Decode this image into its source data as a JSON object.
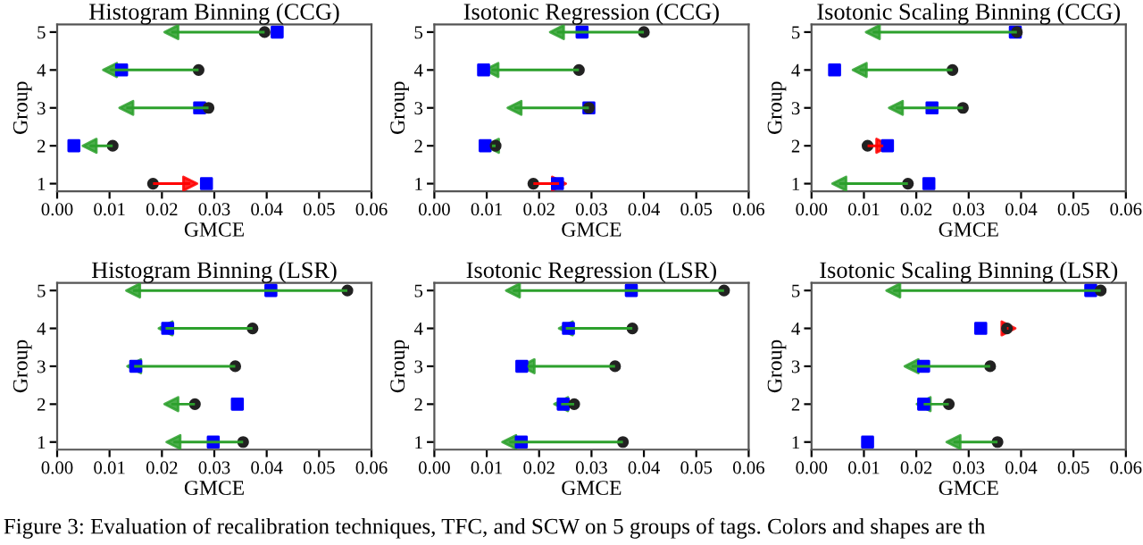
{
  "chart_data": [
    {
      "type": "bar",
      "orientation": "horizontal",
      "title": "Histogram Binning (CCG)",
      "grid": false,
      "legend": false,
      "xlabel": "GMCE",
      "ylabel": "Group",
      "categories": [
        "5",
        "4",
        "3",
        "2",
        "1"
      ],
      "xlim": [
        0,
        0.06
      ],
      "xticks": [
        {
          "value": 0,
          "label": "0.00"
        },
        {
          "value": 0.01,
          "label": "0.01"
        },
        {
          "value": 0.02,
          "label": "0.02"
        },
        {
          "value": 0.03,
          "label": "0.03"
        },
        {
          "value": 0.04,
          "label": "0.04"
        },
        {
          "value": 0.05,
          "label": "0.05"
        },
        {
          "value": 0.06,
          "label": "0.06"
        }
      ],
      "series": [
        {
          "type": "scatter",
          "marker": "circle",
          "color": "#222222",
          "values": [
            0.0396,
            0.027,
            0.0289,
            0.0106,
            0.0183
          ]
        },
        {
          "type": "bar",
          "base": [
            0.0396,
            0.027,
            0.0289,
            0.0106,
            0.0183
          ],
          "values": [
            -0.0178,
            -0.0169,
            -0.0157,
            -0.0044,
            0.0071
          ],
          "colors": [
            "#2ca02c",
            "#2ca02c",
            "#2ca02c",
            "#2ca02c",
            "#ff0000"
          ]
        },
        {
          "type": "scatter",
          "marker": "square",
          "color": "#0000ff",
          "values": [
            0.042,
            0.0123,
            0.0272,
            0.0032,
            0.0285
          ]
        }
      ]
    },
    {
      "type": "bar",
      "orientation": "horizontal",
      "title": "Isotonic Regression (CCG)",
      "grid": false,
      "legend": false,
      "xlabel": "GMCE",
      "ylabel": "Group",
      "categories": [
        "5",
        "4",
        "3",
        "2",
        "1"
      ],
      "xlim": [
        0,
        0.06
      ],
      "xticks": [
        {
          "value": 0,
          "label": "0.00"
        },
        {
          "value": 0.01,
          "label": "0.01"
        },
        {
          "value": 0.02,
          "label": "0.02"
        },
        {
          "value": 0.03,
          "label": "0.03"
        },
        {
          "value": 0.04,
          "label": "0.04"
        },
        {
          "value": 0.05,
          "label": "0.05"
        },
        {
          "value": 0.06,
          "label": "0.06"
        }
      ],
      "series": [
        {
          "type": "scatter",
          "marker": "circle",
          "color": "#222222",
          "values": [
            0.04,
            0.0276,
            0.0295,
            0.0117,
            0.0189
          ]
        },
        {
          "type": "bar",
          "base": [
            0.04,
            0.0276,
            0.0295,
            0.0117,
            0.0189
          ],
          "values": [
            -0.0166,
            -0.0167,
            -0.0142,
            -0.0007,
            0.0049
          ],
          "colors": [
            "#2ca02c",
            "#2ca02c",
            "#2ca02c",
            "#2ca02c",
            "#ff0000"
          ]
        },
        {
          "type": "scatter",
          "marker": "square",
          "color": "#0000ff",
          "values": [
            0.0282,
            0.0094,
            0.0295,
            0.0097,
            0.0235
          ]
        }
      ]
    },
    {
      "type": "bar",
      "orientation": "horizontal",
      "title": "Isotonic Scaling Binning (CCG)",
      "grid": false,
      "legend": false,
      "xlabel": "GMCE",
      "ylabel": "Group",
      "categories": [
        "5",
        "4",
        "3",
        "2",
        "1"
      ],
      "xlim": [
        0,
        0.06
      ],
      "xticks": [
        {
          "value": 0,
          "label": "0.00"
        },
        {
          "value": 0.01,
          "label": "0.01"
        },
        {
          "value": 0.02,
          "label": "0.02"
        },
        {
          "value": 0.03,
          "label": "0.03"
        },
        {
          "value": 0.04,
          "label": "0.04"
        },
        {
          "value": 0.05,
          "label": "0.05"
        },
        {
          "value": 0.06,
          "label": "0.06"
        }
      ],
      "series": [
        {
          "type": "scatter",
          "marker": "circle",
          "color": "#222222",
          "values": [
            0.0392,
            0.0269,
            0.0289,
            0.0107,
            0.0184
          ]
        },
        {
          "type": "bar",
          "base": [
            0.0392,
            0.0269,
            0.0289,
            0.0107,
            0.0184
          ],
          "values": [
            -0.0275,
            -0.0177,
            -0.0128,
            0.003,
            -0.0131
          ],
          "colors": [
            "#2ca02c",
            "#2ca02c",
            "#2ca02c",
            "#ff0000",
            "#2ca02c"
          ]
        },
        {
          "type": "scatter",
          "marker": "square",
          "color": "#0000ff",
          "values": [
            0.0389,
            0.0044,
            0.023,
            0.0145,
            0.0224
          ]
        }
      ]
    },
    {
      "type": "bar",
      "orientation": "horizontal",
      "title": "Histogram Binning (LSR)",
      "grid": false,
      "legend": false,
      "xlabel": "GMCE",
      "ylabel": "Group",
      "categories": [
        "5",
        "4",
        "3",
        "2",
        "1"
      ],
      "xlim": [
        0,
        0.06
      ],
      "xticks": [
        {
          "value": 0,
          "label": "0.00"
        },
        {
          "value": 0.01,
          "label": "0.01"
        },
        {
          "value": 0.02,
          "label": "0.02"
        },
        {
          "value": 0.03,
          "label": "0.03"
        },
        {
          "value": 0.04,
          "label": "0.04"
        },
        {
          "value": 0.05,
          "label": "0.05"
        },
        {
          "value": 0.06,
          "label": "0.06"
        }
      ],
      "annotations": [
        "Figure 3: Evaluation of recalibration techniques, TFC, and SCW on 5 groups of tags. Colors and shapes are th"
      ],
      "series": [
        {
          "type": "scatter",
          "marker": "circle",
          "color": "#222222",
          "values": [
            0.0554,
            0.0373,
            0.034,
            0.0263,
            0.0355
          ]
        },
        {
          "type": "bar",
          "base": [
            0.0554,
            0.0373,
            0.034,
            0.0263,
            0.0355
          ],
          "values": [
            -0.0409,
            -0.0166,
            -0.0193,
            -0.0045,
            -0.0133
          ],
          "colors": [
            "#2ca02c",
            "#2ca02c",
            "#2ca02c",
            "#2ca02c",
            "#2ca02c"
          ]
        },
        {
          "type": "scatter",
          "marker": "square",
          "color": "#0000ff",
          "values": [
            0.0408,
            0.0211,
            0.015,
            0.0344,
            0.0298
          ]
        }
      ]
    },
    {
      "type": "bar",
      "orientation": "horizontal",
      "title": "Isotonic Regression (LSR)",
      "grid": false,
      "legend": false,
      "xlabel": "GMCE",
      "ylabel": "Group",
      "categories": [
        "5",
        "4",
        "3",
        "2",
        "1"
      ],
      "xlim": [
        0,
        0.06
      ],
      "xticks": [
        {
          "value": 0,
          "label": "0.00"
        },
        {
          "value": 0.01,
          "label": "0.01"
        },
        {
          "value": 0.02,
          "label": "0.02"
        },
        {
          "value": 0.03,
          "label": "0.03"
        },
        {
          "value": 0.04,
          "label": "0.04"
        },
        {
          "value": 0.05,
          "label": "0.05"
        },
        {
          "value": 0.06,
          "label": "0.06"
        }
      ],
      "series": [
        {
          "type": "scatter",
          "marker": "circle",
          "color": "#222222",
          "values": [
            0.0553,
            0.0378,
            0.0345,
            0.0267,
            0.036
          ]
        },
        {
          "type": "bar",
          "base": [
            0.0553,
            0.0378,
            0.0345,
            0.0267,
            0.036
          ],
          "values": [
            -0.0403,
            -0.0127,
            -0.0167,
            -0.0025,
            -0.0217
          ],
          "colors": [
            "#2ca02c",
            "#2ca02c",
            "#2ca02c",
            "#2ca02c",
            "#2ca02c"
          ]
        },
        {
          "type": "scatter",
          "marker": "square",
          "color": "#0000ff",
          "values": [
            0.0376,
            0.0256,
            0.0167,
            0.0246,
            0.0166
          ]
        }
      ]
    },
    {
      "type": "bar",
      "orientation": "horizontal",
      "title": "Isotonic Scaling Binning (LSR)",
      "grid": false,
      "legend": false,
      "xlabel": "GMCE",
      "ylabel": "Group",
      "categories": [
        "5",
        "4",
        "3",
        "2",
        "1"
      ],
      "xlim": [
        0,
        0.06
      ],
      "xticks": [
        {
          "value": 0,
          "label": "0.00"
        },
        {
          "value": 0.01,
          "label": "0.01"
        },
        {
          "value": 0.02,
          "label": "0.02"
        },
        {
          "value": 0.03,
          "label": "0.03"
        },
        {
          "value": 0.04,
          "label": "0.04"
        },
        {
          "value": 0.05,
          "label": "0.05"
        },
        {
          "value": 0.06,
          "label": "0.06"
        }
      ],
      "series": [
        {
          "type": "scatter",
          "marker": "circle",
          "color": "#222222",
          "values": [
            0.0552,
            0.0373,
            0.0341,
            0.0262,
            0.0355
          ]
        },
        {
          "type": "bar",
          "base": [
            0.0552,
            0.0373,
            0.0341,
            0.0262,
            0.0355
          ],
          "values": [
            -0.0396,
            0.0003,
            -0.015,
            -0.0048,
            -0.0084
          ],
          "colors": [
            "#2ca02c",
            "#ff0000",
            "#2ca02c",
            "#2ca02c",
            "#2ca02c"
          ]
        },
        {
          "type": "scatter",
          "marker": "square",
          "color": "#0000ff",
          "values": [
            0.0533,
            0.0323,
            0.0214,
            0.0214,
            0.0107
          ]
        }
      ]
    }
  ]
}
